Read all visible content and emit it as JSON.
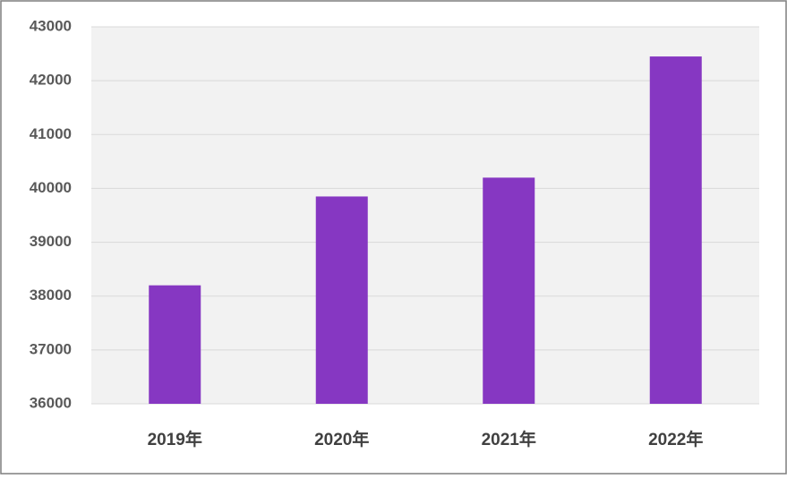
{
  "chart_data": {
    "type": "bar",
    "categories": [
      "2019年",
      "2020年",
      "2021年",
      "2022年"
    ],
    "values": [
      38200,
      39850,
      40200,
      42450
    ],
    "color": "#8637c2",
    "ylim": [
      36000,
      43000
    ],
    "yticks": [
      36000,
      37000,
      38000,
      39000,
      40000,
      41000,
      42000,
      43000
    ],
    "grid": true
  }
}
